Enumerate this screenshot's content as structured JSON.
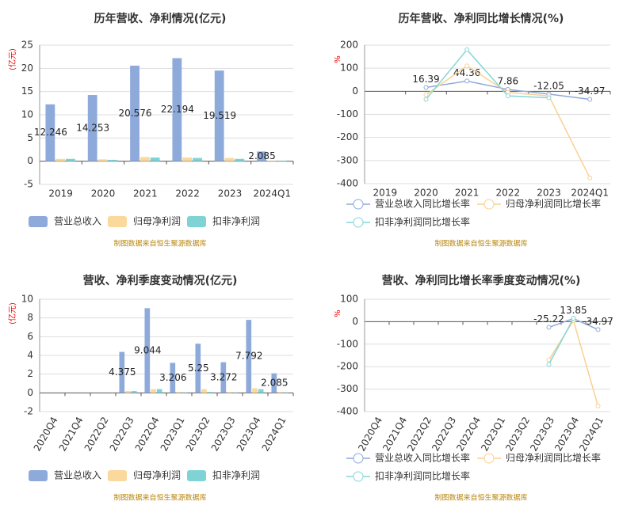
{
  "chart_data": [
    {
      "type": "bar",
      "title": "历年营收、净利情况(亿元)",
      "y_label": "(亿元)",
      "source": "制图数据来自恒生聚源数据库",
      "categories": [
        "2019",
        "2020",
        "2021",
        "2022",
        "2023",
        "2024Q1"
      ],
      "series": [
        {
          "name": "营业总收入",
          "color": "#8eaadb",
          "values": [
            12.246,
            14.253,
            20.576,
            22.194,
            19.519,
            2.085
          ],
          "data_labels": true
        },
        {
          "name": "归母净利润",
          "color": "#fbd89b",
          "values": [
            0.5,
            0.4,
            0.9,
            0.8,
            0.7,
            0.1
          ]
        },
        {
          "name": "扣非净利润",
          "color": "#7fd3d4",
          "values": [
            0.5,
            0.3,
            0.8,
            0.7,
            0.5,
            0.1
          ]
        }
      ],
      "ylim": [
        -5,
        25
      ],
      "yticks": [
        -5,
        0,
        5,
        10,
        15,
        20,
        25
      ],
      "grid": true
    },
    {
      "type": "line",
      "title": "历年营收、净利同比增长情况(%)",
      "y_label": "%",
      "source": "制图数据来自恒生聚源数据库",
      "categories": [
        "2019",
        "2020",
        "2021",
        "2022",
        "2023",
        "2024Q1"
      ],
      "series": [
        {
          "name": "营业总收入同比增长率",
          "color": "#8eaadb",
          "values": [
            null,
            16.39,
            44.36,
            7.86,
            -12.05,
            -34.97
          ],
          "data_labels": true
        },
        {
          "name": "归母净利润同比增长率",
          "color": "#fbd08f",
          "values": [
            null,
            -15,
            110,
            -5,
            -20,
            -375
          ]
        },
        {
          "name": "扣非净利润同比增长率",
          "color": "#86d6d8",
          "values": [
            null,
            -35,
            180,
            -20,
            -28,
            null
          ]
        }
      ],
      "ylim": [
        -400,
        200
      ],
      "yticks": [
        -400,
        -300,
        -200,
        -100,
        0,
        100,
        200
      ],
      "grid": true
    },
    {
      "type": "bar",
      "title": "营收、净利季度变动情况(亿元)",
      "y_label": "(亿元)",
      "source": "制图数据来自恒生聚源数据库",
      "categories": [
        "2020Q4",
        "2021Q4",
        "2022Q2",
        "2022Q3",
        "2022Q4",
        "2023Q1",
        "2023Q2",
        "2023Q3",
        "2023Q4",
        "2024Q1"
      ],
      "series": [
        {
          "name": "营业总收入",
          "color": "#8eaadb",
          "values": [
            null,
            null,
            null,
            4.375,
            9.044,
            3.206,
            5.25,
            3.272,
            7.792,
            2.085
          ],
          "data_labels": true
        },
        {
          "name": "归母净利润",
          "color": "#fbd89b",
          "values": [
            null,
            null,
            null,
            0.2,
            0.4,
            0.1,
            0.4,
            0.1,
            0.5,
            0.1
          ]
        },
        {
          "name": "扣非净利润",
          "color": "#7fd3d4",
          "values": [
            null,
            null,
            null,
            0.2,
            0.4,
            0.05,
            0.1,
            0.05,
            0.4,
            0.05
          ]
        }
      ],
      "ylim": [
        -2,
        10
      ],
      "yticks": [
        -2,
        0,
        2,
        4,
        6,
        8,
        10
      ],
      "grid": true
    },
    {
      "type": "line",
      "title": "营收、净利同比增长率季度变动情况(%)",
      "y_label": "%",
      "source": "制图数据来自恒生聚源数据库",
      "categories": [
        "2020Q4",
        "2021Q4",
        "2022Q2",
        "2022Q3",
        "2022Q4",
        "2023Q1",
        "2023Q2",
        "2023Q3",
        "2023Q4",
        "2024Q1"
      ],
      "series": [
        {
          "name": "营业总收入同比增长率",
          "color": "#8eaadb",
          "values": [
            null,
            null,
            null,
            null,
            null,
            null,
            null,
            -25.22,
            13.85,
            -34.97
          ],
          "data_labels": true
        },
        {
          "name": "归母净利润同比增长率",
          "color": "#fbd08f",
          "values": [
            null,
            null,
            null,
            null,
            null,
            null,
            null,
            -170,
            5,
            -375
          ]
        },
        {
          "name": "扣非净利润同比增长率",
          "color": "#86d6d8",
          "values": [
            null,
            null,
            null,
            null,
            null,
            null,
            null,
            -190,
            15,
            null
          ]
        }
      ],
      "ylim": [
        -400,
        100
      ],
      "yticks": [
        -400,
        -300,
        -200,
        -100,
        0,
        100
      ],
      "grid": true
    }
  ]
}
